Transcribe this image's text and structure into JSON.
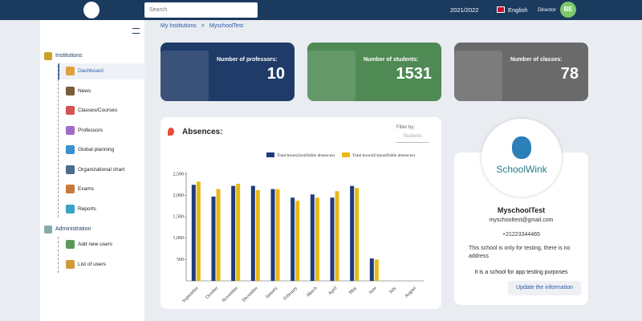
{
  "topbar": {
    "search_placeholder": "Search",
    "year": "2021/2022",
    "language": "English",
    "role": "Director",
    "avatar": "BE"
  },
  "breadcrumb": [
    "My Institutions",
    ">",
    "MyschoolTest"
  ],
  "sidebar": {
    "sections": [
      {
        "title": "Institutions",
        "items": [
          "Dashboard",
          "News",
          "Classes/Courses",
          "Professors",
          "Global planning",
          "Organizational chart",
          "Exams",
          "Reports"
        ]
      },
      {
        "title": "Administration",
        "items": [
          "Add new users",
          "List of users"
        ]
      }
    ]
  },
  "stats": [
    {
      "label": "Number of professors:",
      "value": 10,
      "color": "#1f3b68"
    },
    {
      "label": "Number of students:",
      "value": 1531,
      "color": "#4f8a55"
    },
    {
      "label": "Number of classes:",
      "value": 78,
      "color": "#6a6a6a"
    }
  ],
  "filter": {
    "label": "Filter by:",
    "value": "Students"
  },
  "chart_data": {
    "type": "bar",
    "title": "Absences:",
    "categories": [
      "September",
      "October",
      "November",
      "December",
      "January",
      "February",
      "March",
      "April",
      "May",
      "June",
      "July",
      "August"
    ],
    "series": [
      {
        "name": "Total hours(Justifiable absences)",
        "color": "#1f3b7a",
        "values": [
          2250,
          1975,
          2225,
          2225,
          2150,
          1950,
          2025,
          1950,
          2225,
          525,
          0,
          0
        ]
      },
      {
        "name": "Total hours(Unjustifiable absences)",
        "color": "#e8b817",
        "values": [
          2325,
          2150,
          2275,
          2125,
          2150,
          1875,
          1950,
          2100,
          2175,
          500,
          0,
          0
        ]
      }
    ],
    "ylim": [
      0,
      2500
    ],
    "yticks": [
      500,
      {
        "value": 1000,
        "label": "1,000"
      },
      {
        "value": 1500,
        "label": "1,500"
      },
      {
        "value": 2000,
        "label": "2,000"
      },
      {
        "value": 2500,
        "label": "2,500"
      }
    ],
    "legend": "top"
  },
  "profile": {
    "logo": "SchoolWink",
    "name": "MyschoolTest",
    "email": "myschooltest@gmail.com",
    "phone": "+21223344465",
    "address": "This school is only for testing, there is no address",
    "description": "It is a school for app testing purposes",
    "button": "Update the information"
  }
}
